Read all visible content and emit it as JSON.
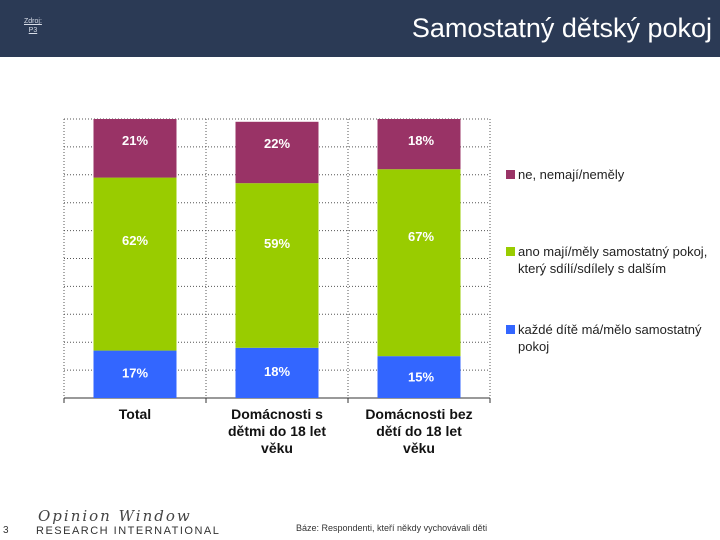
{
  "header": {
    "source_label": "Zdroj:",
    "source_ref": "P3",
    "title": "Samostatný dětský pokoj"
  },
  "chart_data": {
    "type": "bar",
    "stacked": true,
    "categories": [
      "Total",
      "Domácnosti s dětmi do 18 let věku",
      "Domácnosti bez dětí do 18 let věku"
    ],
    "series": [
      {
        "name": "každé dítě má/mělo samostatný pokoj",
        "values": [
          17,
          18,
          15
        ],
        "color": "#3366ff"
      },
      {
        "name": "ano mají/měly samostatný pokoj, který sdílí/sdílely s dalším",
        "values": [
          62,
          59,
          67
        ],
        "color": "#99cc00"
      },
      {
        "name": "ne, nemají/neměly",
        "values": [
          21,
          22,
          18
        ],
        "color": "#993366"
      }
    ],
    "ylim": [
      0,
      100
    ],
    "grid": true,
    "legend_position": "right"
  },
  "legend": {
    "items": [
      {
        "label": "ne, nemají/neměly",
        "color": "#993366"
      },
      {
        "label": "ano mají/měly samostatný pokoj, který sdílí/sdílely s dalším",
        "color": "#99cc00"
      },
      {
        "label": "každé dítě má/mělo samostatný pokoj",
        "color": "#3366ff"
      }
    ]
  },
  "footer": {
    "page_number": "3",
    "logo_script": "Opinion Window",
    "logo_text": "RESEARCH INTERNATIONAL",
    "base_note": "Báze: Respondenti, kteří někdy vychovávali děti"
  }
}
